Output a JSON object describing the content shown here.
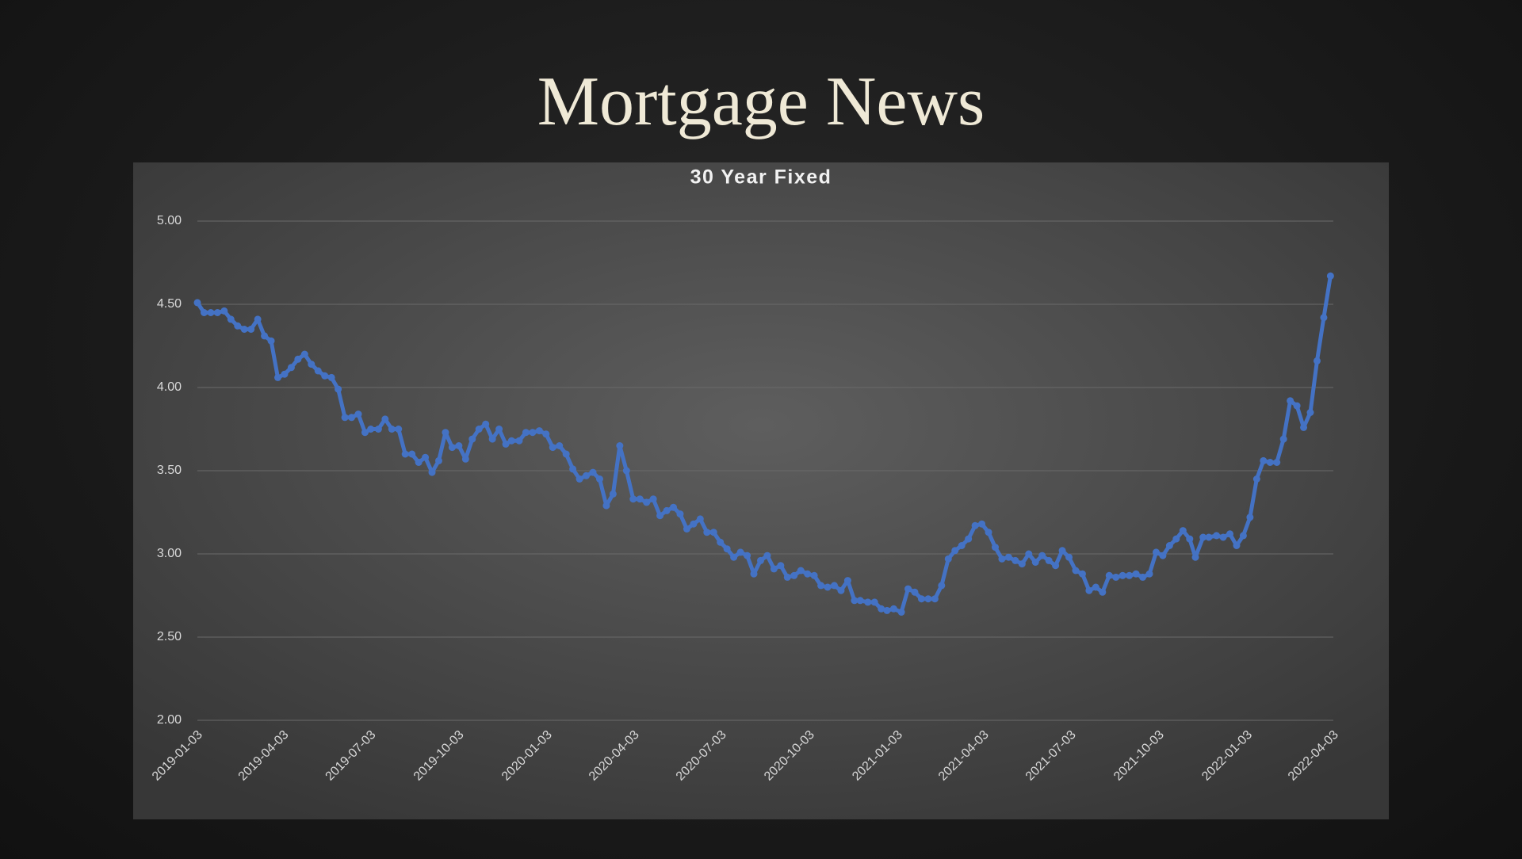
{
  "title": "Mortgage News",
  "chart_data": {
    "type": "line",
    "title": "30 Year Fixed",
    "x": [
      "2019-01-03",
      "2019-01-10",
      "2019-01-17",
      "2019-01-24",
      "2019-01-31",
      "2019-02-07",
      "2019-02-14",
      "2019-02-21",
      "2019-02-28",
      "2019-03-07",
      "2019-03-14",
      "2019-03-21",
      "2019-03-28",
      "2019-04-04",
      "2019-04-11",
      "2019-04-18",
      "2019-04-25",
      "2019-05-02",
      "2019-05-09",
      "2019-05-16",
      "2019-05-23",
      "2019-05-30",
      "2019-06-06",
      "2019-06-13",
      "2019-06-20",
      "2019-06-27",
      "2019-07-03",
      "2019-07-11",
      "2019-07-18",
      "2019-07-25",
      "2019-08-01",
      "2019-08-08",
      "2019-08-15",
      "2019-08-22",
      "2019-08-29",
      "2019-09-05",
      "2019-09-12",
      "2019-09-19",
      "2019-09-26",
      "2019-10-03",
      "2019-10-10",
      "2019-10-17",
      "2019-10-24",
      "2019-10-31",
      "2019-11-07",
      "2019-11-14",
      "2019-11-21",
      "2019-11-27",
      "2019-12-05",
      "2019-12-12",
      "2019-12-19",
      "2019-12-26",
      "2020-01-02",
      "2020-01-09",
      "2020-01-16",
      "2020-01-23",
      "2020-01-30",
      "2020-02-06",
      "2020-02-13",
      "2020-02-20",
      "2020-02-27",
      "2020-03-05",
      "2020-03-12",
      "2020-03-19",
      "2020-03-26",
      "2020-04-02",
      "2020-04-09",
      "2020-04-16",
      "2020-04-23",
      "2020-04-30",
      "2020-05-07",
      "2020-05-14",
      "2020-05-21",
      "2020-05-28",
      "2020-06-04",
      "2020-06-11",
      "2020-06-18",
      "2020-06-25",
      "2020-07-02",
      "2020-07-09",
      "2020-07-16",
      "2020-07-23",
      "2020-07-30",
      "2020-08-06",
      "2020-08-13",
      "2020-08-20",
      "2020-08-27",
      "2020-09-03",
      "2020-09-10",
      "2020-09-17",
      "2020-09-24",
      "2020-10-01",
      "2020-10-08",
      "2020-10-15",
      "2020-10-22",
      "2020-10-29",
      "2020-11-05",
      "2020-11-12",
      "2020-11-19",
      "2020-11-25",
      "2020-12-03",
      "2020-12-10",
      "2020-12-17",
      "2020-12-23",
      "2020-12-30",
      "2021-01-07",
      "2021-01-14",
      "2021-01-21",
      "2021-01-28",
      "2021-02-04",
      "2021-02-11",
      "2021-02-18",
      "2021-02-25",
      "2021-03-04",
      "2021-03-11",
      "2021-03-18",
      "2021-03-25",
      "2021-04-01",
      "2021-04-08",
      "2021-04-15",
      "2021-04-22",
      "2021-04-29",
      "2021-05-06",
      "2021-05-13",
      "2021-05-20",
      "2021-05-27",
      "2021-06-03",
      "2021-06-10",
      "2021-06-17",
      "2021-06-24",
      "2021-07-01",
      "2021-07-08",
      "2021-07-15",
      "2021-07-22",
      "2021-07-29",
      "2021-08-05",
      "2021-08-12",
      "2021-08-19",
      "2021-08-26",
      "2021-09-02",
      "2021-09-09",
      "2021-09-16",
      "2021-09-23",
      "2021-09-30",
      "2021-10-07",
      "2021-10-14",
      "2021-10-21",
      "2021-10-28",
      "2021-11-04",
      "2021-11-10",
      "2021-11-18",
      "2021-11-24",
      "2021-12-02",
      "2021-12-09",
      "2021-12-16",
      "2021-12-23",
      "2021-12-30",
      "2022-01-06",
      "2022-01-13",
      "2022-01-20",
      "2022-01-27",
      "2022-02-03",
      "2022-02-10",
      "2022-02-17",
      "2022-02-24",
      "2022-03-03",
      "2022-03-10",
      "2022-03-17",
      "2022-03-24",
      "2022-03-31"
    ],
    "series": [
      {
        "color": "#4472c4",
        "values": [
          4.51,
          4.45,
          4.45,
          4.45,
          4.46,
          4.41,
          4.37,
          4.35,
          4.35,
          4.41,
          4.31,
          4.28,
          4.06,
          4.08,
          4.12,
          4.17,
          4.2,
          4.14,
          4.1,
          4.07,
          4.06,
          3.99,
          3.82,
          3.82,
          3.84,
          3.73,
          3.75,
          3.75,
          3.81,
          3.75,
          3.75,
          3.6,
          3.6,
          3.55,
          3.58,
          3.49,
          3.56,
          3.73,
          3.64,
          3.65,
          3.57,
          3.69,
          3.75,
          3.78,
          3.69,
          3.75,
          3.66,
          3.68,
          3.68,
          3.73,
          3.73,
          3.74,
          3.72,
          3.64,
          3.65,
          3.6,
          3.51,
          3.45,
          3.47,
          3.49,
          3.45,
          3.29,
          3.36,
          3.65,
          3.5,
          3.33,
          3.33,
          3.31,
          3.33,
          3.23,
          3.26,
          3.28,
          3.24,
          3.15,
          3.18,
          3.21,
          3.13,
          3.13,
          3.07,
          3.03,
          2.98,
          3.01,
          2.99,
          2.88,
          2.96,
          2.99,
          2.91,
          2.93,
          2.86,
          2.87,
          2.9,
          2.88,
          2.87,
          2.81,
          2.8,
          2.81,
          2.78,
          2.84,
          2.72,
          2.72,
          2.71,
          2.71,
          2.67,
          2.66,
          2.67,
          2.65,
          2.79,
          2.77,
          2.73,
          2.73,
          2.73,
          2.81,
          2.97,
          3.02,
          3.05,
          3.09,
          3.17,
          3.18,
          3.13,
          3.04,
          2.97,
          2.98,
          2.96,
          2.94,
          3.0,
          2.95,
          2.99,
          2.96,
          2.93,
          3.02,
          2.98,
          2.9,
          2.88,
          2.78,
          2.8,
          2.77,
          2.87,
          2.86,
          2.87,
          2.87,
          2.88,
          2.86,
          2.88,
          3.01,
          2.99,
          3.05,
          3.09,
          3.14,
          3.09,
          2.98,
          3.1,
          3.1,
          3.11,
          3.1,
          3.12,
          3.05,
          3.11,
          3.22,
          3.45,
          3.56,
          3.55,
          3.55,
          3.69,
          3.92,
          3.89,
          3.76,
          3.85,
          4.16,
          4.42,
          4.67
        ]
      }
    ],
    "xlim": [
      "2019-01-03",
      "2022-04-03"
    ],
    "xticks": [
      "2019-01-03",
      "2019-04-03",
      "2019-07-03",
      "2019-10-03",
      "2020-01-03",
      "2020-04-03",
      "2020-07-03",
      "2020-10-03",
      "2021-01-03",
      "2021-04-03",
      "2021-07-03",
      "2021-10-03",
      "2022-01-03",
      "2022-04-03"
    ],
    "ylim": [
      2,
      5
    ],
    "yticks": [
      {
        "value": 2,
        "label": "2.00"
      },
      {
        "value": 2.5,
        "label": "2.50"
      },
      {
        "value": 3,
        "label": "3.00"
      },
      {
        "value": 3.5,
        "label": "3.50"
      },
      {
        "value": 4,
        "label": "4.00"
      },
      {
        "value": 4.5,
        "label": "4.50"
      },
      {
        "value": 5,
        "label": "5.00"
      }
    ],
    "grid": true
  }
}
